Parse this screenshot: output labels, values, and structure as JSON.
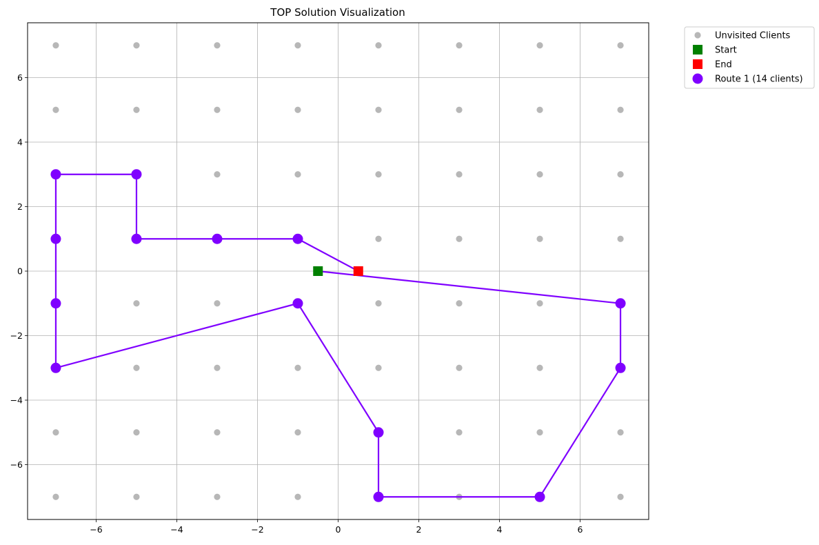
{
  "chart_data": {
    "type": "scatter",
    "title": "TOP Solution Visualization",
    "xlabel": "",
    "ylabel": "",
    "xlim": [
      -7.7,
      7.7
    ],
    "ylim": [
      -7.7,
      7.7
    ],
    "xticks": [
      -6,
      -4,
      -2,
      0,
      2,
      4,
      6
    ],
    "yticks": [
      -6,
      -4,
      -2,
      0,
      2,
      4,
      6
    ],
    "grid": true,
    "legend_position": "outside-top-right",
    "colors": {
      "unvisited": "#aaaaaa",
      "start": "#008000",
      "end": "#ff0000",
      "route": "#7f00ff",
      "grid": "#b0b0b0"
    },
    "series": [
      {
        "name": "Unvisited Clients",
        "kind": "scatter",
        "x_grid": [
          -7,
          -5,
          -3,
          -1,
          1,
          3,
          5,
          7
        ],
        "y_grid": [
          7,
          5,
          3,
          1,
          -1,
          -3,
          -5,
          -7
        ],
        "visited_points": [
          [
            -7,
            3
          ],
          [
            -5,
            3
          ],
          [
            -7,
            1
          ],
          [
            -5,
            1
          ],
          [
            -3,
            1
          ],
          [
            -1,
            1
          ],
          [
            -7,
            -1
          ],
          [
            -1,
            -1
          ],
          [
            7,
            -1
          ],
          [
            -7,
            -3
          ],
          [
            7,
            -3
          ],
          [
            1,
            -5
          ],
          [
            1,
            -7
          ],
          [
            5,
            -7
          ]
        ]
      },
      {
        "name": "Start",
        "kind": "square",
        "points": [
          [
            -0.5,
            0
          ]
        ]
      },
      {
        "name": "End",
        "kind": "square",
        "points": [
          [
            0.5,
            0
          ]
        ]
      },
      {
        "name": "Route 1 (14 clients)",
        "kind": "line",
        "points": [
          [
            -0.5,
            0
          ],
          [
            7,
            -1
          ],
          [
            7,
            -3
          ],
          [
            5,
            -7
          ],
          [
            1,
            -7
          ],
          [
            1,
            -5
          ],
          [
            -1,
            -1
          ],
          [
            -7,
            -3
          ],
          [
            -7,
            -1
          ],
          [
            -7,
            1
          ],
          [
            -7,
            3
          ],
          [
            -5,
            3
          ],
          [
            -5,
            1
          ],
          [
            -3,
            1
          ],
          [
            -1,
            1
          ],
          [
            0.5,
            0
          ]
        ]
      }
    ]
  }
}
